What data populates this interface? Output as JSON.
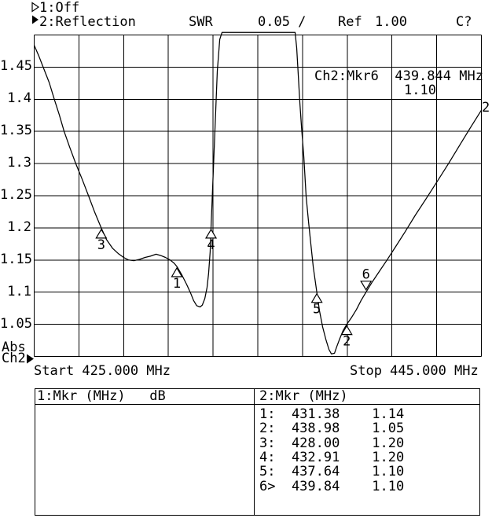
{
  "header": {
    "ch1": {
      "indicator": "hollow-right-triangle",
      "label": "1:Off"
    },
    "ch2": {
      "indicator": "filled-right-triangle",
      "label": "2:Reflection"
    },
    "measurement": "SWR",
    "scale_per_div": "0.05 /",
    "ref_label": "Ref",
    "ref_value": "1.00",
    "cal_status": "C?"
  },
  "annotation": {
    "line1": "Ch2:Mkr6  439.844 MHz",
    "line2": "1.10"
  },
  "trace_number_label": "2",
  "axis_footer": {
    "abs": "Abs",
    "channel": "Ch2",
    "pointer": "filled-right-triangle",
    "start": "Start 425.000 MHz",
    "stop": "Stop 445.000 MHz"
  },
  "marker_table": {
    "left_header": "1:Mkr (MHz)   dB",
    "right_header": "2:Mkr (MHz)",
    "rows": [
      {
        "label": "1:",
        "freq": "431.38",
        "value": "1.14"
      },
      {
        "label": "2:",
        "freq": "438.98",
        "value": "1.05"
      },
      {
        "label": "3:",
        "freq": "428.00",
        "value": "1.20"
      },
      {
        "label": "4:",
        "freq": "432.91",
        "value": "1.20"
      },
      {
        "label": "5:",
        "freq": "437.64",
        "value": "1.10"
      },
      {
        "label": "6>",
        "freq": "439.84",
        "value": "1.10"
      }
    ]
  },
  "colors": {
    "foreground": "#000000",
    "background": "#ffffff"
  },
  "chart_data": {
    "type": "line",
    "title": "Ch2 Reflection SWR vs Frequency",
    "xlabel": "Start 425.000 MHz ... Stop 445.000 MHz",
    "ylabel": "SWR (0.05 / div, Ref 1.00)",
    "xlim": [
      425.0,
      445.0
    ],
    "ylim": [
      1.0,
      1.5
    ],
    "x_divisions": 10,
    "y_divisions": 10,
    "grid": true,
    "clip_value": 1.504,
    "y_tick_labels": [
      "1.45",
      "1.4",
      "1.35",
      "1.3",
      "1.25",
      "1.2",
      "1.15",
      "1.1",
      "1.05"
    ],
    "series": [
      {
        "name": "Ch2 SWR",
        "points": [
          [
            425.0,
            1.484
          ],
          [
            425.2,
            1.468
          ],
          [
            425.4,
            1.45
          ],
          [
            425.67,
            1.426
          ],
          [
            425.9,
            1.4
          ],
          [
            426.12,
            1.376
          ],
          [
            426.34,
            1.35
          ],
          [
            426.58,
            1.326
          ],
          [
            426.86,
            1.3
          ],
          [
            427.14,
            1.276
          ],
          [
            427.43,
            1.25
          ],
          [
            427.71,
            1.224
          ],
          [
            428.0,
            1.2
          ],
          [
            428.23,
            1.182
          ],
          [
            428.51,
            1.168
          ],
          [
            428.76,
            1.16
          ],
          [
            429.0,
            1.154
          ],
          [
            429.22,
            1.15
          ],
          [
            429.46,
            1.149
          ],
          [
            429.71,
            1.151
          ],
          [
            429.96,
            1.154
          ],
          [
            430.2,
            1.156
          ],
          [
            430.45,
            1.159
          ],
          [
            430.66,
            1.157
          ],
          [
            430.87,
            1.154
          ],
          [
            431.08,
            1.15
          ],
          [
            431.26,
            1.145
          ],
          [
            431.38,
            1.14
          ],
          [
            431.6,
            1.127
          ],
          [
            431.82,
            1.112
          ],
          [
            432.0,
            1.098
          ],
          [
            432.13,
            1.087
          ],
          [
            432.27,
            1.079
          ],
          [
            432.42,
            1.077
          ],
          [
            432.52,
            1.08
          ],
          [
            432.63,
            1.09
          ],
          [
            432.73,
            1.107
          ],
          [
            432.8,
            1.129
          ],
          [
            432.87,
            1.163
          ],
          [
            432.91,
            1.2
          ],
          [
            432.98,
            1.261
          ],
          [
            433.05,
            1.322
          ],
          [
            433.12,
            1.383
          ],
          [
            433.19,
            1.444
          ],
          [
            433.3,
            1.493
          ],
          [
            433.4,
            1.504
          ],
          [
            434.5,
            1.504
          ],
          [
            435.5,
            1.504
          ],
          [
            436.67,
            1.504
          ],
          [
            436.74,
            1.48
          ],
          [
            436.81,
            1.438
          ],
          [
            436.88,
            1.395
          ],
          [
            436.95,
            1.359
          ],
          [
            437.06,
            1.31
          ],
          [
            437.16,
            1.249
          ],
          [
            437.27,
            1.209
          ],
          [
            437.37,
            1.176
          ],
          [
            437.48,
            1.139
          ],
          [
            437.64,
            1.1
          ],
          [
            437.76,
            1.071
          ],
          [
            437.9,
            1.046
          ],
          [
            438.04,
            1.027
          ],
          [
            438.18,
            1.011
          ],
          [
            438.29,
            1.004
          ],
          [
            438.43,
            1.005
          ],
          [
            438.53,
            1.015
          ],
          [
            438.67,
            1.028
          ],
          [
            438.81,
            1.04
          ],
          [
            438.98,
            1.05
          ],
          [
            439.2,
            1.061
          ],
          [
            439.41,
            1.073
          ],
          [
            439.62,
            1.087
          ],
          [
            439.84,
            1.1
          ],
          [
            440.12,
            1.116
          ],
          [
            440.43,
            1.132
          ],
          [
            440.78,
            1.15
          ],
          [
            441.17,
            1.171
          ],
          [
            441.59,
            1.194
          ],
          [
            442.05,
            1.22
          ],
          [
            442.54,
            1.246
          ],
          [
            443.04,
            1.273
          ],
          [
            443.53,
            1.3
          ],
          [
            444.02,
            1.328
          ],
          [
            444.51,
            1.356
          ],
          [
            445.0,
            1.383
          ]
        ]
      }
    ],
    "markers": [
      {
        "n": "1",
        "freq": 431.38,
        "value": 1.14
      },
      {
        "n": "2",
        "freq": 438.98,
        "value": 1.05
      },
      {
        "n": "3",
        "freq": 428.0,
        "value": 1.2
      },
      {
        "n": "4",
        "freq": 432.91,
        "value": 1.2
      },
      {
        "n": "5",
        "freq": 437.64,
        "value": 1.1
      },
      {
        "n": "6",
        "freq": 439.84,
        "value": 1.1,
        "active": true
      }
    ]
  }
}
